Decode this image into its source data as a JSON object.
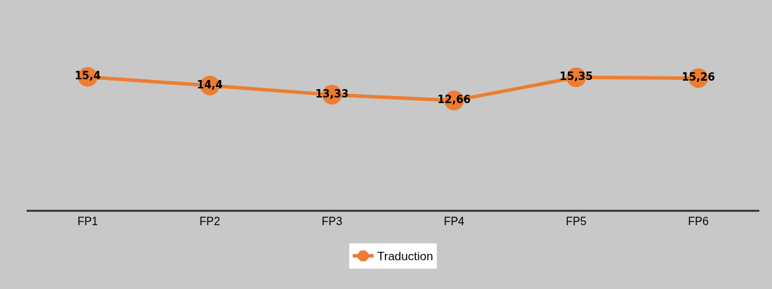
{
  "chart_data": {
    "type": "line",
    "categories": [
      "FP1",
      "FP2",
      "FP3",
      "FP4",
      "FP5",
      "FP6"
    ],
    "series": [
      {
        "name": "Traduction",
        "color": "#ed7d31",
        "values": [
          15.4,
          14.4,
          13.33,
          12.66,
          15.35,
          15.26
        ],
        "value_labels": [
          "15,4",
          "14,4",
          "13,33",
          "12,66",
          "15,35",
          "15,26"
        ]
      }
    ],
    "marker": "circle",
    "line_style": "solid",
    "grid": false,
    "legend": "bottom"
  }
}
